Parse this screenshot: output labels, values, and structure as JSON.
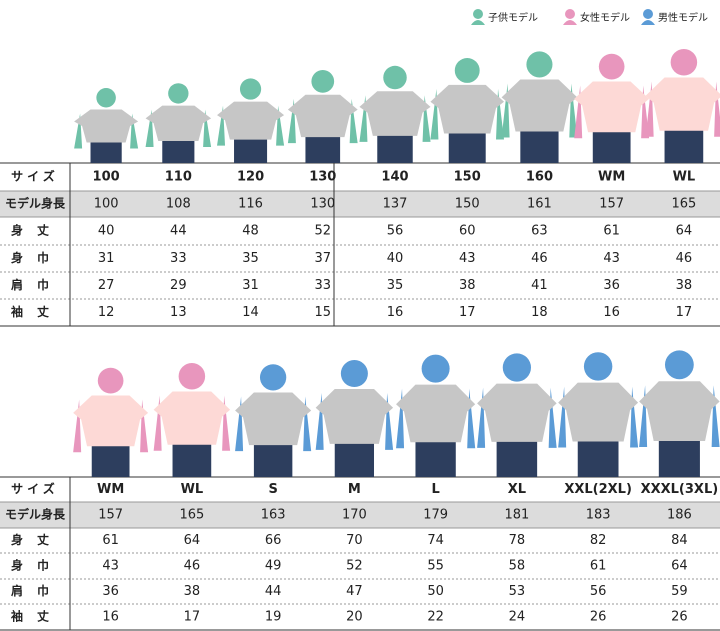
{
  "legend": [
    "子供モデル",
    "女性モデル",
    "男性モデル"
  ],
  "tables": [
    {
      "header": [
        "サイズ",
        "100",
        "110",
        "120",
        "130",
        "140",
        "150",
        "160",
        "WM",
        "WL"
      ],
      "rows": [
        [
          "モデル身長",
          100,
          108,
          116,
          130,
          137,
          150,
          161,
          157,
          165
        ],
        [
          "身丈",
          40,
          44,
          48,
          52,
          56,
          60,
          63,
          61,
          64
        ],
        [
          "身巾",
          31,
          33,
          35,
          37,
          40,
          43,
          46,
          43,
          46
        ],
        [
          "肩巾",
          27,
          29,
          31,
          33,
          35,
          38,
          41,
          36,
          38
        ],
        [
          "袖丈",
          12,
          13,
          14,
          15,
          16,
          17,
          18,
          16,
          17
        ]
      ]
    },
    {
      "header": [
        "サイズ",
        "WM",
        "WL",
        "S",
        "M",
        "L",
        "XL",
        "XXL(2XL)",
        "XXXL(3XL)"
      ],
      "rows": [
        [
          "モデル身長",
          157,
          165,
          163,
          170,
          179,
          181,
          183,
          186
        ],
        [
          "身丈",
          61,
          64,
          66,
          70,
          74,
          78,
          82,
          84
        ],
        [
          "身巾",
          43,
          46,
          49,
          52,
          55,
          58,
          61,
          64
        ],
        [
          "肩巾",
          36,
          38,
          44,
          47,
          50,
          53,
          56,
          59
        ],
        [
          "袖丈",
          16,
          17,
          19,
          20,
          22,
          24,
          26,
          26
        ]
      ]
    }
  ]
}
